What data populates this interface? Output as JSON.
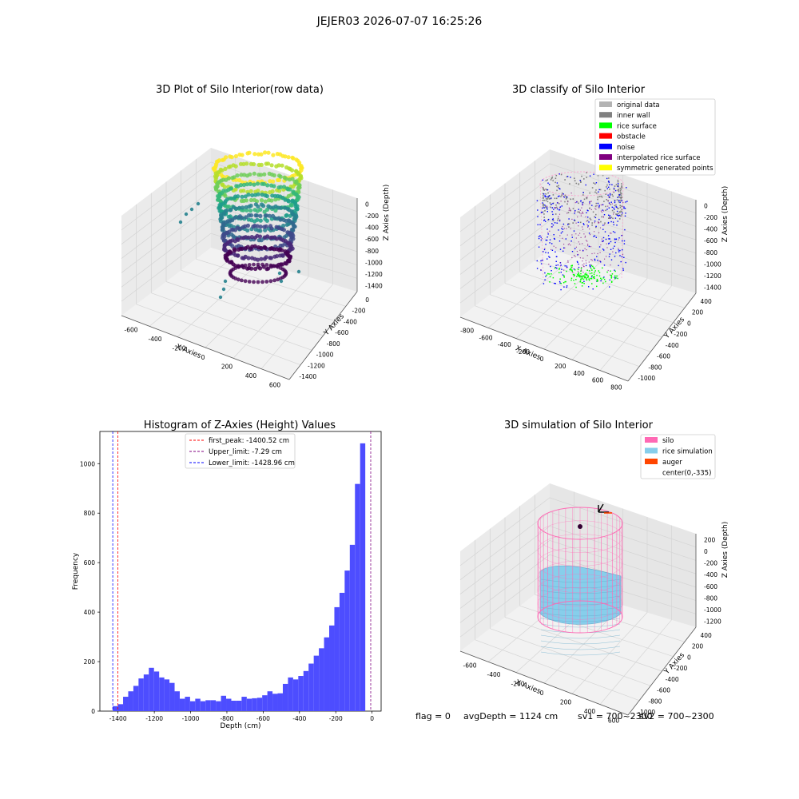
{
  "suptitle": "JEJER03 2026-07-07 16:25:26",
  "panels": {
    "raw": {
      "title": "3D Plot of Silo Interior(row data)",
      "xlabel": "X Axies",
      "ylabel": "Y Axies",
      "zlabel": "Z Axies (Depth)",
      "xticks": [
        "-600",
        "-400",
        "-200",
        "0",
        "200",
        "400",
        "600"
      ],
      "yticks": [
        "0",
        "-200",
        "-400",
        "-600",
        "-800",
        "-1000",
        "-1200",
        "-1400"
      ],
      "zticks": [
        "0",
        "-200",
        "-400",
        "-600",
        "-800",
        "-1000",
        "-1200",
        "-1400"
      ],
      "colormap": [
        "#fde725",
        "#b5de2b",
        "#6ece58",
        "#35b779",
        "#1f9e89",
        "#26828e",
        "#31688e",
        "#3e4989",
        "#482878",
        "#440154"
      ]
    },
    "classify": {
      "title": "3D classify of Silo Interior",
      "xlabel": "X Axies",
      "ylabel": "Y Axies",
      "zlabel": "Z Axies (Depth)",
      "xticks": [
        "-800",
        "-600",
        "-400",
        "-200",
        "0",
        "200",
        "400",
        "600",
        "800"
      ],
      "yticks": [
        "400",
        "200",
        "0",
        "-200",
        "-400",
        "-600",
        "-800",
        "-1000"
      ],
      "zticks": [
        "0",
        "-200",
        "-400",
        "-600",
        "-800",
        "-1000",
        "-1200",
        "-1400"
      ],
      "legend": [
        {
          "label": "original data",
          "color": "#b3b3b3"
        },
        {
          "label": "inner wall",
          "color": "#808080"
        },
        {
          "label": "rice surface",
          "color": "#00ff00"
        },
        {
          "label": "obstacle",
          "color": "#ff0000"
        },
        {
          "label": "noise",
          "color": "#0000ff"
        },
        {
          "label": "interpolated rice surface",
          "color": "#800080"
        },
        {
          "label": "symmetric generated points",
          "color": "#ffff00"
        }
      ],
      "wall_color": "#ff99cc"
    },
    "sim": {
      "title": "3D simulation of Silo Interior",
      "xlabel": "X Axies",
      "ylabel": "Y Axies",
      "zlabel": "Z Axies (Depth)",
      "xticks": [
        "-600",
        "-400",
        "-200",
        "0",
        "200",
        "400",
        "600"
      ],
      "yticks": [
        "400",
        "200",
        "0",
        "-200",
        "-400",
        "-600",
        "-800",
        "-1000"
      ],
      "zticks": [
        "200",
        "0",
        "-200",
        "-400",
        "-600",
        "-800",
        "-1000",
        "-1200"
      ],
      "legend": [
        {
          "label": "silo",
          "color": "#ff69b4"
        },
        {
          "label": "rice simulation",
          "color": "#87ceeb"
        },
        {
          "label": "auger",
          "color": "#ff4500"
        },
        {
          "label": "center(0,-335)",
          "color": ""
        }
      ]
    }
  },
  "chart_data": [
    {
      "type": "histogram",
      "title": "Histogram of Z-Axies (Height) Values",
      "xlabel": "Depth (cm)",
      "ylabel": "Frequency",
      "xlim": [
        -1500,
        50
      ],
      "ylim": [
        0,
        1130
      ],
      "xticks": [
        -1400,
        -1200,
        -1000,
        -800,
        -600,
        -400,
        -200,
        0
      ],
      "yticks": [
        0,
        200,
        400,
        600,
        800,
        1000
      ],
      "bar_color": "#4d4dff",
      "bins": {
        "start": -1428.96,
        "width": 28.4,
        "counts": [
          20,
          28,
          58,
          80,
          102,
          132,
          148,
          175,
          160,
          136,
          128,
          114,
          80,
          50,
          58,
          40,
          50,
          40,
          44,
          44,
          40,
          62,
          50,
          42,
          42,
          58,
          50,
          52,
          54,
          64,
          80,
          70,
          72,
          110,
          136,
          128,
          142,
          162,
          192,
          224,
          254,
          298,
          346,
          420,
          478,
          568,
          672,
          918,
          1082
        ]
      },
      "lines": [
        {
          "label": "first_peak: -1400.52 cm",
          "x": -1400.52,
          "color": "#ff0000"
        },
        {
          "label": "Upper_limit: -7.29 cm",
          "x": -7.29,
          "color": "#800080"
        },
        {
          "label": "Lower_limit: -1428.96 cm",
          "x": -1428.96,
          "color": "#0000ff"
        }
      ],
      "legend_position": "top-center"
    }
  ],
  "footer": {
    "flag": "flag = 0",
    "avg": "avgDepth = 1124 cm",
    "sv1": "sv1 = 700~2300",
    "sv2": "sv2 = 700~2300"
  }
}
